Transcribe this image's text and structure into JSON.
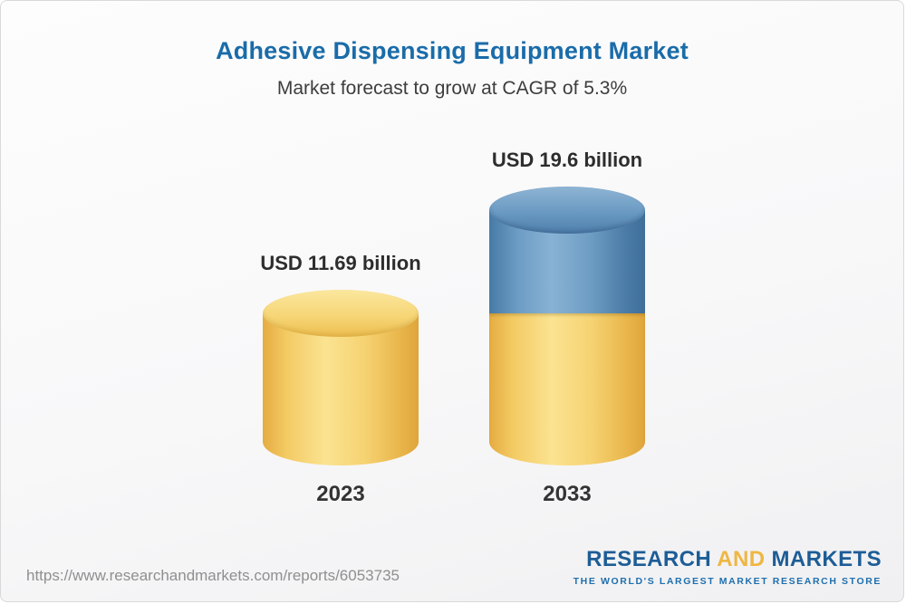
{
  "header": {
    "title": "Adhesive Dispensing Equipment Market",
    "subtitle": "Market forecast to grow at CAGR of 5.3%"
  },
  "chart_data": {
    "type": "bar",
    "variant": "3d-cylinder",
    "title": "Adhesive Dispensing Equipment Market",
    "subtitle": "Market forecast to grow at CAGR of 5.3%",
    "cagr_percent": 5.3,
    "categories": [
      "2023",
      "2033"
    ],
    "values": [
      11.69,
      19.6
    ],
    "unit": "USD billion",
    "value_labels": [
      "USD 11.69 billion",
      "USD 19.6 billion"
    ],
    "colors": {
      "base_segment": "#F5CE68",
      "growth_segment": "#5F8FB8",
      "title_text": "#1A6CA9"
    },
    "legend_position": "none",
    "grid": false
  },
  "footer": {
    "url": "https://www.researchandmarkets.com/reports/6053735",
    "logo": {
      "part1": "RESEARCH",
      "part2": "AND",
      "part3": "MARKETS",
      "tagline": "THE WORLD'S LARGEST MARKET RESEARCH STORE"
    }
  }
}
